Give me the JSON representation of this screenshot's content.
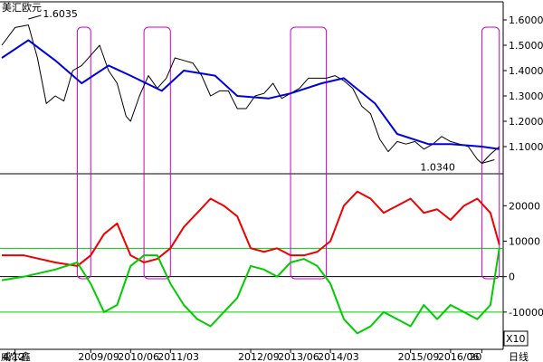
{
  "window": {
    "date_axis_prefix": "威尔鑫",
    "daily_label": "日线",
    "multiplier_label": "X10"
  },
  "colors": {
    "price": "#000000",
    "ma": "#0000dd",
    "red_series": "#ee0000",
    "green_series": "#00cc00",
    "highlight_box": "#cc00cc",
    "grid": "#000000",
    "guide": "#00cc00"
  },
  "chart_data": [
    {
      "type": "line",
      "title": "美汇欧元",
      "yaxis_side": "right",
      "ylim": [
        1.0,
        1.65
      ],
      "yticks": [
        "1.6000",
        "1.5000",
        "1.4000",
        "1.3000",
        "1.2000",
        "1.1000"
      ],
      "ytick_values": [
        1.6,
        1.5,
        1.4,
        1.3,
        1.2,
        1.1
      ],
      "annotations": [
        {
          "text": "1.6035",
          "x": "2008-07",
          "y": 1.6035
        },
        {
          "text": "1.0340",
          "x": "2017-01",
          "y": 1.034
        }
      ],
      "series": [
        {
          "kind": "price",
          "x": [
            "2008-01",
            "2008-04",
            "2008-07",
            "2008-09",
            "2008-11",
            "2009-01",
            "2009-03",
            "2009-05",
            "2009-07",
            "2009-09",
            "2009-11",
            "2010-01",
            "2010-03",
            "2010-05",
            "2010-06",
            "2010-08",
            "2010-10",
            "2010-12",
            "2011-02",
            "2011-04",
            "2011-06",
            "2011-08",
            "2011-10",
            "2011-12",
            "2012-02",
            "2012-04",
            "2012-06",
            "2012-08",
            "2012-10",
            "2012-12",
            "2013-02",
            "2013-04",
            "2013-06",
            "2013-08",
            "2013-10",
            "2013-12",
            "2014-02",
            "2014-04",
            "2014-06",
            "2014-08",
            "2014-10",
            "2014-12",
            "2015-02",
            "2015-04",
            "2015-06",
            "2015-08",
            "2015-10",
            "2015-12",
            "2016-02",
            "2016-04",
            "2016-06",
            "2016-08",
            "2016-10",
            "2016-12",
            "2017-01",
            "2017-03",
            "2017-05"
          ],
          "values": [
            1.5,
            1.57,
            1.58,
            1.45,
            1.27,
            1.3,
            1.28,
            1.4,
            1.42,
            1.46,
            1.5,
            1.4,
            1.35,
            1.22,
            1.2,
            1.3,
            1.38,
            1.33,
            1.37,
            1.45,
            1.44,
            1.43,
            1.38,
            1.3,
            1.32,
            1.32,
            1.25,
            1.25,
            1.3,
            1.31,
            1.35,
            1.29,
            1.31,
            1.33,
            1.37,
            1.37,
            1.37,
            1.38,
            1.36,
            1.33,
            1.26,
            1.23,
            1.13,
            1.08,
            1.12,
            1.11,
            1.12,
            1.09,
            1.11,
            1.14,
            1.12,
            1.11,
            1.1,
            1.05,
            1.034,
            1.07,
            1.1
          ]
        },
        {
          "kind": "moving-average",
          "x": [
            "2008-01",
            "2008-07",
            "2009-01",
            "2009-07",
            "2010-01",
            "2010-06",
            "2011-01",
            "2011-06",
            "2012-01",
            "2012-06",
            "2013-01",
            "2013-06",
            "2014-01",
            "2014-06",
            "2015-01",
            "2015-06",
            "2016-01",
            "2016-06",
            "2017-01",
            "2017-05"
          ],
          "values": [
            1.45,
            1.52,
            1.44,
            1.35,
            1.42,
            1.38,
            1.32,
            1.4,
            1.38,
            1.3,
            1.29,
            1.31,
            1.35,
            1.37,
            1.27,
            1.15,
            1.11,
            1.11,
            1.1,
            1.09
          ]
        }
      ]
    },
    {
      "type": "line",
      "yaxis_side": "right",
      "ylim": [
        -20000,
        28000
      ],
      "yticks": [
        "20000",
        "10000",
        "0",
        "-10000"
      ],
      "ytick_values": [
        20000,
        10000,
        0,
        -10000
      ],
      "guide_lines": [
        8000,
        0,
        -10000
      ],
      "xticks": [
        "4/12",
        "2009/09",
        "2010/06",
        "2011/03",
        "2012/09",
        "2013/06",
        "2014/03",
        "2015/09",
        "2016/06",
        "20"
      ],
      "xtick_dates": [
        "2008-04",
        "2009-09",
        "2010-06",
        "2011-03",
        "2012-09",
        "2013-06",
        "2014-03",
        "2015-09",
        "2016-06",
        "2017-01"
      ],
      "series": [
        {
          "kind": "red",
          "x": [
            "2008-01",
            "2008-06",
            "2009-01",
            "2009-06",
            "2009-09",
            "2009-12",
            "2010-03",
            "2010-06",
            "2010-09",
            "2010-12",
            "2011-03",
            "2011-06",
            "2011-09",
            "2011-12",
            "2012-03",
            "2012-06",
            "2012-09",
            "2012-12",
            "2013-03",
            "2013-06",
            "2013-09",
            "2013-12",
            "2014-03",
            "2014-06",
            "2014-09",
            "2014-12",
            "2015-03",
            "2015-06",
            "2015-09",
            "2015-12",
            "2016-03",
            "2016-06",
            "2016-09",
            "2016-12",
            "2017-03",
            "2017-05"
          ],
          "values": [
            6000,
            6000,
            4000,
            3000,
            6000,
            12000,
            15000,
            6000,
            4000,
            5000,
            8000,
            14000,
            18000,
            22000,
            20000,
            17000,
            8000,
            7000,
            8000,
            6000,
            6000,
            7000,
            10000,
            20000,
            24000,
            22000,
            18000,
            20000,
            22000,
            18000,
            19000,
            16000,
            20000,
            22000,
            18000,
            9000
          ]
        },
        {
          "kind": "green",
          "x": [
            "2008-01",
            "2008-06",
            "2009-01",
            "2009-06",
            "2009-09",
            "2009-12",
            "2010-03",
            "2010-06",
            "2010-09",
            "2010-12",
            "2011-03",
            "2011-06",
            "2011-09",
            "2011-12",
            "2012-03",
            "2012-06",
            "2012-09",
            "2012-12",
            "2013-03",
            "2013-06",
            "2013-09",
            "2013-12",
            "2014-03",
            "2014-06",
            "2014-09",
            "2014-12",
            "2015-03",
            "2015-06",
            "2015-09",
            "2015-12",
            "2016-03",
            "2016-06",
            "2016-09",
            "2016-12",
            "2017-03",
            "2017-05"
          ],
          "values": [
            -1000,
            0,
            2000,
            4000,
            -2000,
            -10000,
            -8000,
            3000,
            6000,
            6000,
            -2000,
            -8000,
            -12000,
            -14000,
            -10000,
            -6000,
            3000,
            2000,
            0,
            4000,
            5000,
            3000,
            -2000,
            -12000,
            -16000,
            -14000,
            -10000,
            -12000,
            -14000,
            -8000,
            -12000,
            -8000,
            -10000,
            -12000,
            -8000,
            8000
          ]
        }
      ]
    }
  ],
  "highlight_boxes": [
    {
      "start": "2009-06",
      "end": "2009-09"
    },
    {
      "start": "2010-09",
      "end": "2011-03"
    },
    {
      "start": "2013-06",
      "end": "2014-02"
    },
    {
      "start": "2017-01",
      "end": "2017-05"
    }
  ]
}
